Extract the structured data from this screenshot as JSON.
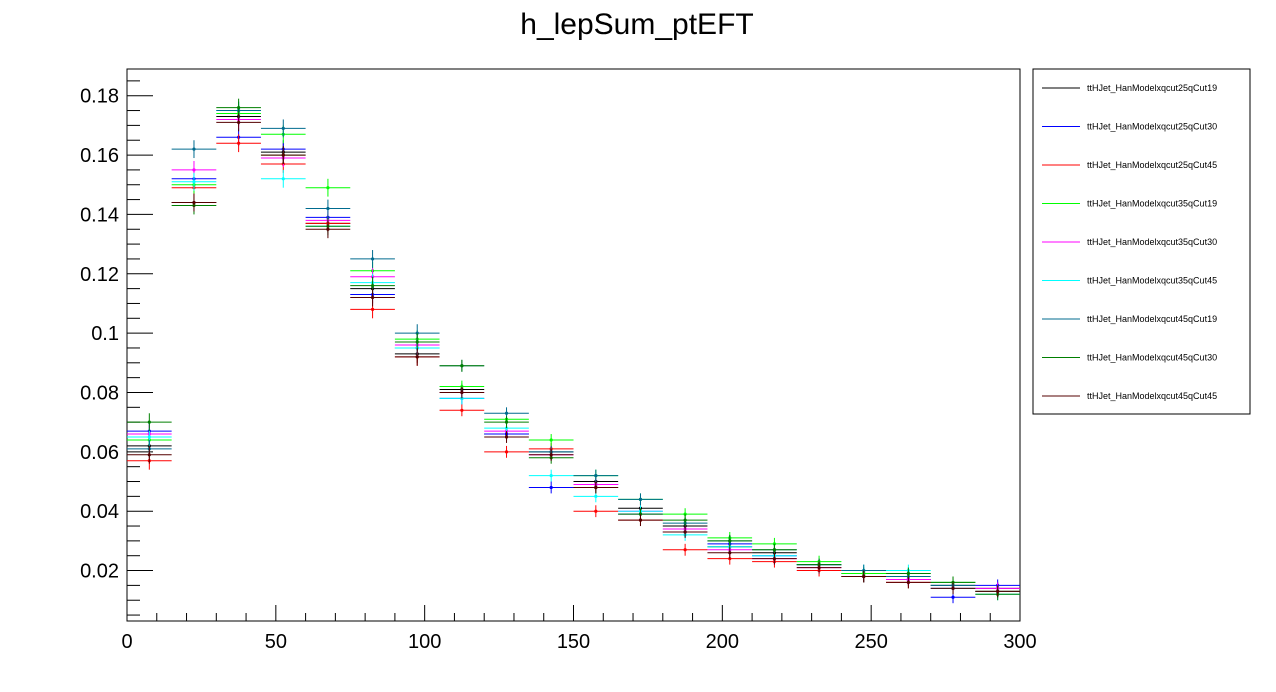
{
  "chart_data": {
    "type": "scatter",
    "title": "h_lepSum_ptEFT",
    "xlabel": "",
    "ylabel": "",
    "xlim": [
      0,
      300
    ],
    "ylim": [
      0.003,
      0.189
    ],
    "x_ticks": [
      0,
      50,
      100,
      150,
      200,
      250,
      300
    ],
    "y_ticks": [
      0.02,
      0.04,
      0.06,
      0.08,
      0.1,
      0.12,
      0.14,
      0.16,
      0.18
    ],
    "x_tick_labels": [
      "0",
      "50",
      "100",
      "150",
      "200",
      "250",
      "300"
    ],
    "y_tick_labels": [
      "0.02",
      "0.04",
      "0.06",
      "0.08",
      "0.1",
      "0.12",
      "0.14",
      "0.16",
      "0.18"
    ],
    "bin_edges": [
      0,
      15,
      30,
      45,
      60,
      75,
      90,
      105,
      120,
      135,
      150,
      165,
      180,
      195,
      210,
      225,
      240,
      255,
      270,
      285,
      300
    ],
    "grid": false,
    "legend_position": "right",
    "series": [
      {
        "name": "ttHJet_HanModelxqcut25qCut19",
        "color": "#000000",
        "values": [
          0.062,
          0.144,
          0.173,
          0.161,
          0.137,
          0.115,
          0.093,
          0.081,
          0.066,
          0.06,
          0.05,
          0.041,
          0.035,
          0.028,
          0.026,
          0.022,
          0.018,
          0.017,
          0.015,
          0.014
        ],
        "errors": [
          0.003,
          0.003,
          0.003,
          0.003,
          0.003,
          0.003,
          0.003,
          0.002,
          0.002,
          0.002,
          0.002,
          0.002,
          0.002,
          0.002,
          0.002,
          0.002,
          0.002,
          0.002,
          0.002,
          0.002
        ]
      },
      {
        "name": "ttHJet_HanModelxqcut25qCut30",
        "color": "#0000ff",
        "values": [
          0.067,
          0.152,
          0.166,
          0.162,
          0.139,
          0.113,
          0.095,
          0.078,
          0.066,
          0.048,
          0.049,
          0.039,
          0.033,
          0.029,
          0.025,
          0.022,
          0.019,
          0.017,
          0.011,
          0.015
        ],
        "errors": [
          0.003,
          0.003,
          0.003,
          0.003,
          0.003,
          0.003,
          0.003,
          0.002,
          0.002,
          0.002,
          0.002,
          0.002,
          0.002,
          0.002,
          0.002,
          0.002,
          0.002,
          0.002,
          0.002,
          0.002
        ]
      },
      {
        "name": "ttHJet_HanModelxqcut25qCut45",
        "color": "#ff0000",
        "values": [
          0.057,
          0.149,
          0.164,
          0.157,
          0.137,
          0.108,
          0.092,
          0.074,
          0.06,
          0.061,
          0.04,
          0.037,
          0.027,
          0.024,
          0.023,
          0.02,
          0.019,
          0.016,
          0.014,
          0.013
        ],
        "errors": [
          0.003,
          0.003,
          0.003,
          0.003,
          0.003,
          0.003,
          0.003,
          0.002,
          0.002,
          0.002,
          0.002,
          0.002,
          0.002,
          0.002,
          0.002,
          0.002,
          0.002,
          0.002,
          0.002,
          0.002
        ]
      },
      {
        "name": "ttHJet_HanModelxqcut35qCut19",
        "color": "#00ff00",
        "values": [
          0.064,
          0.15,
          0.174,
          0.167,
          0.149,
          0.121,
          0.098,
          0.082,
          0.071,
          0.064,
          0.052,
          0.044,
          0.039,
          0.031,
          0.029,
          0.023,
          0.019,
          0.019,
          0.016,
          0.013
        ],
        "errors": [
          0.003,
          0.003,
          0.003,
          0.003,
          0.003,
          0.003,
          0.003,
          0.002,
          0.002,
          0.002,
          0.002,
          0.002,
          0.002,
          0.002,
          0.002,
          0.002,
          0.002,
          0.002,
          0.002,
          0.002
        ]
      },
      {
        "name": "ttHJet_HanModelxqcut35qCut30",
        "color": "#ff00ff",
        "values": [
          0.066,
          0.155,
          0.172,
          0.159,
          0.138,
          0.119,
          0.096,
          0.08,
          0.067,
          0.059,
          0.049,
          0.04,
          0.034,
          0.027,
          0.024,
          0.021,
          0.018,
          0.017,
          0.014,
          0.014
        ],
        "errors": [
          0.003,
          0.003,
          0.003,
          0.003,
          0.003,
          0.003,
          0.003,
          0.002,
          0.002,
          0.002,
          0.002,
          0.002,
          0.002,
          0.002,
          0.002,
          0.002,
          0.002,
          0.002,
          0.002,
          0.002
        ]
      },
      {
        "name": "ttHJet_HanModelxqcut35qCut45",
        "color": "#00ffff",
        "values": [
          0.065,
          0.151,
          0.175,
          0.152,
          0.136,
          0.117,
          0.095,
          0.078,
          0.068,
          0.052,
          0.045,
          0.04,
          0.032,
          0.028,
          0.025,
          0.022,
          0.02,
          0.02,
          0.014,
          0.012
        ],
        "errors": [
          0.003,
          0.003,
          0.003,
          0.003,
          0.003,
          0.003,
          0.003,
          0.002,
          0.002,
          0.002,
          0.002,
          0.002,
          0.002,
          0.002,
          0.002,
          0.002,
          0.002,
          0.002,
          0.002,
          0.002
        ]
      },
      {
        "name": "ttHJet_HanModelxqcut45qCut19",
        "color": "#006b8f",
        "values": [
          0.061,
          0.162,
          0.175,
          0.169,
          0.142,
          0.125,
          0.1,
          0.089,
          0.073,
          0.06,
          0.052,
          0.044,
          0.036,
          0.03,
          0.027,
          0.022,
          0.02,
          0.018,
          0.015,
          0.013
        ],
        "errors": [
          0.003,
          0.003,
          0.003,
          0.003,
          0.003,
          0.003,
          0.003,
          0.002,
          0.002,
          0.002,
          0.002,
          0.002,
          0.002,
          0.002,
          0.002,
          0.002,
          0.002,
          0.002,
          0.002,
          0.002
        ]
      },
      {
        "name": "ttHJet_HanModelxqcut45qCut30",
        "color": "#007f00",
        "values": [
          0.07,
          0.143,
          0.176,
          0.16,
          0.136,
          0.116,
          0.097,
          0.089,
          0.07,
          0.058,
          0.048,
          0.039,
          0.037,
          0.03,
          0.027,
          0.022,
          0.018,
          0.019,
          0.016,
          0.012
        ],
        "errors": [
          0.003,
          0.003,
          0.003,
          0.003,
          0.003,
          0.003,
          0.003,
          0.002,
          0.002,
          0.002,
          0.002,
          0.002,
          0.002,
          0.002,
          0.002,
          0.002,
          0.002,
          0.002,
          0.002,
          0.002
        ]
      },
      {
        "name": "ttHJet_HanModelxqcut45qCut45",
        "color": "#550000",
        "values": [
          0.059,
          0.144,
          0.171,
          0.16,
          0.135,
          0.112,
          0.092,
          0.08,
          0.065,
          0.059,
          0.048,
          0.037,
          0.033,
          0.026,
          0.024,
          0.021,
          0.018,
          0.016,
          0.014,
          0.013
        ],
        "errors": [
          0.003,
          0.003,
          0.003,
          0.003,
          0.003,
          0.003,
          0.003,
          0.002,
          0.002,
          0.002,
          0.002,
          0.002,
          0.002,
          0.002,
          0.002,
          0.002,
          0.002,
          0.002,
          0.002,
          0.002
        ]
      }
    ]
  }
}
